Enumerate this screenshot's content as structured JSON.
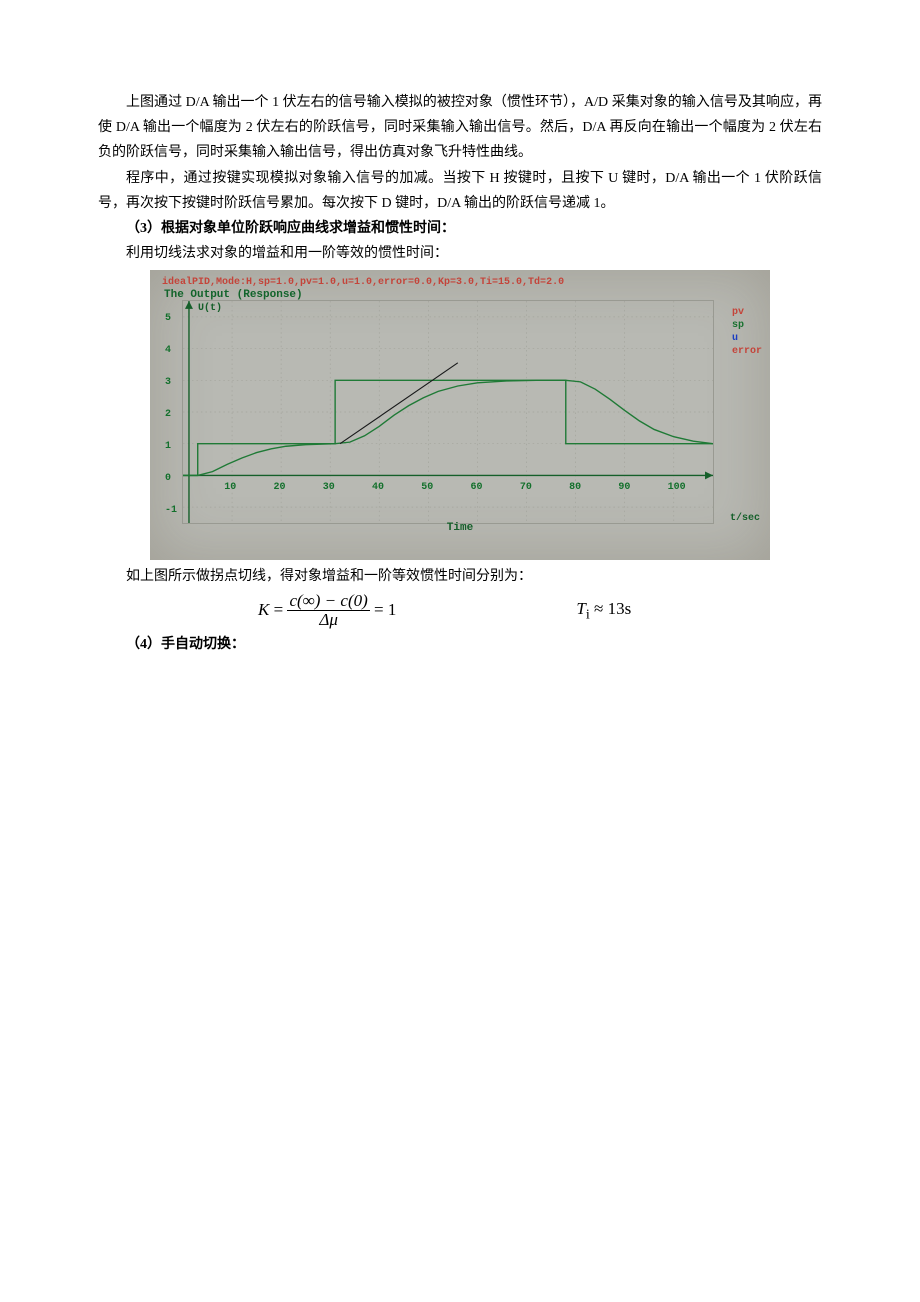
{
  "paragraphs": {
    "p1": "上图通过 D/A 输出一个 1 伏左右的信号输入模拟的被控对象（惯性环节），A/D 采集对象的输入信号及其响应，再使 D/A 输出一个幅度为 2 伏左右的阶跃信号，同时采集输入输出信号。然后，D/A 再反向在输出一个幅度为 2 伏左右负的阶跃信号，同时采集输入输出信号，得出仿真对象飞升特性曲线。",
    "p2": "程序中，通过按键实现模拟对象输入信号的加减。当按下 H 按键时，且按下 U 键时，D/A 输出一个 1 伏阶跃信号，再次按下按键时阶跃信号累加。每次按下 D 键时，D/A 输出的阶跃信号递减 1。",
    "h3": "（3）根据对象单位阶跃响应曲线求增益和惯性时间：",
    "p3": "利用切线法求对象的增益和用一阶等效的惯性时间：",
    "p4": "如上图所示做拐点切线，得对象增益和一阶等效惯性时间分别为：",
    "h4": "（4）手自动切换："
  },
  "equations": {
    "K_lhs": "K",
    "K_num": "c(∞) − c(0)",
    "K_den": "Δμ",
    "K_rhs": "= 1",
    "Ti": "T",
    "Ti_sub": "i",
    "Ti_rhs": " ≈ 13s"
  },
  "chart": {
    "title_bar": "idealPID,Mode:H,sp=1.0,pv=1.0,u=1.0,error=0.0,Kp=3.0,Ti=15.0,Td=2.0",
    "subtitle": "The Output (Response)",
    "yaxis": "U(t)",
    "xaxis": "Time",
    "tsec": "t/sec",
    "legend": {
      "pv": "pv",
      "sp": "sp",
      "u": "u",
      "err": "error"
    },
    "xlim": [
      0,
      108
    ],
    "ylim": [
      -1.5,
      5.5
    ],
    "x_ticks": [
      10,
      20,
      30,
      40,
      50,
      60,
      70,
      80,
      90,
      100
    ],
    "y_ticks": [
      -1,
      0,
      1,
      2,
      3,
      4,
      5
    ],
    "grid_color": "#a3a49c",
    "background": "#b8b9b3",
    "colors": {
      "sp": "#1f7a36",
      "pv": "#1f7a36",
      "tangent": "#18191a"
    },
    "sp_series": [
      [
        0,
        0
      ],
      [
        3,
        0
      ],
      [
        3,
        1
      ],
      [
        31,
        1
      ],
      [
        31,
        3
      ],
      [
        78,
        3
      ],
      [
        78,
        1
      ],
      [
        108,
        1
      ]
    ],
    "pv_series": [
      [
        0,
        0
      ],
      [
        3,
        0
      ],
      [
        6,
        0.12
      ],
      [
        9,
        0.35
      ],
      [
        12,
        0.55
      ],
      [
        15,
        0.72
      ],
      [
        18,
        0.84
      ],
      [
        21,
        0.92
      ],
      [
        25,
        0.97
      ],
      [
        31,
        1.0
      ],
      [
        34,
        1.05
      ],
      [
        37,
        1.25
      ],
      [
        40,
        1.55
      ],
      [
        43,
        1.9
      ],
      [
        46,
        2.2
      ],
      [
        49,
        2.45
      ],
      [
        52,
        2.65
      ],
      [
        56,
        2.82
      ],
      [
        60,
        2.92
      ],
      [
        66,
        2.98
      ],
      [
        72,
        3.0
      ],
      [
        78,
        3.0
      ],
      [
        81,
        2.95
      ],
      [
        84,
        2.72
      ],
      [
        87,
        2.4
      ],
      [
        90,
        2.05
      ],
      [
        93,
        1.72
      ],
      [
        96,
        1.45
      ],
      [
        100,
        1.22
      ],
      [
        104,
        1.08
      ],
      [
        108,
        1.0
      ]
    ],
    "tangent_series": [
      [
        32,
        1.0
      ],
      [
        56,
        3.55
      ]
    ],
    "line_width": 1.4
  }
}
